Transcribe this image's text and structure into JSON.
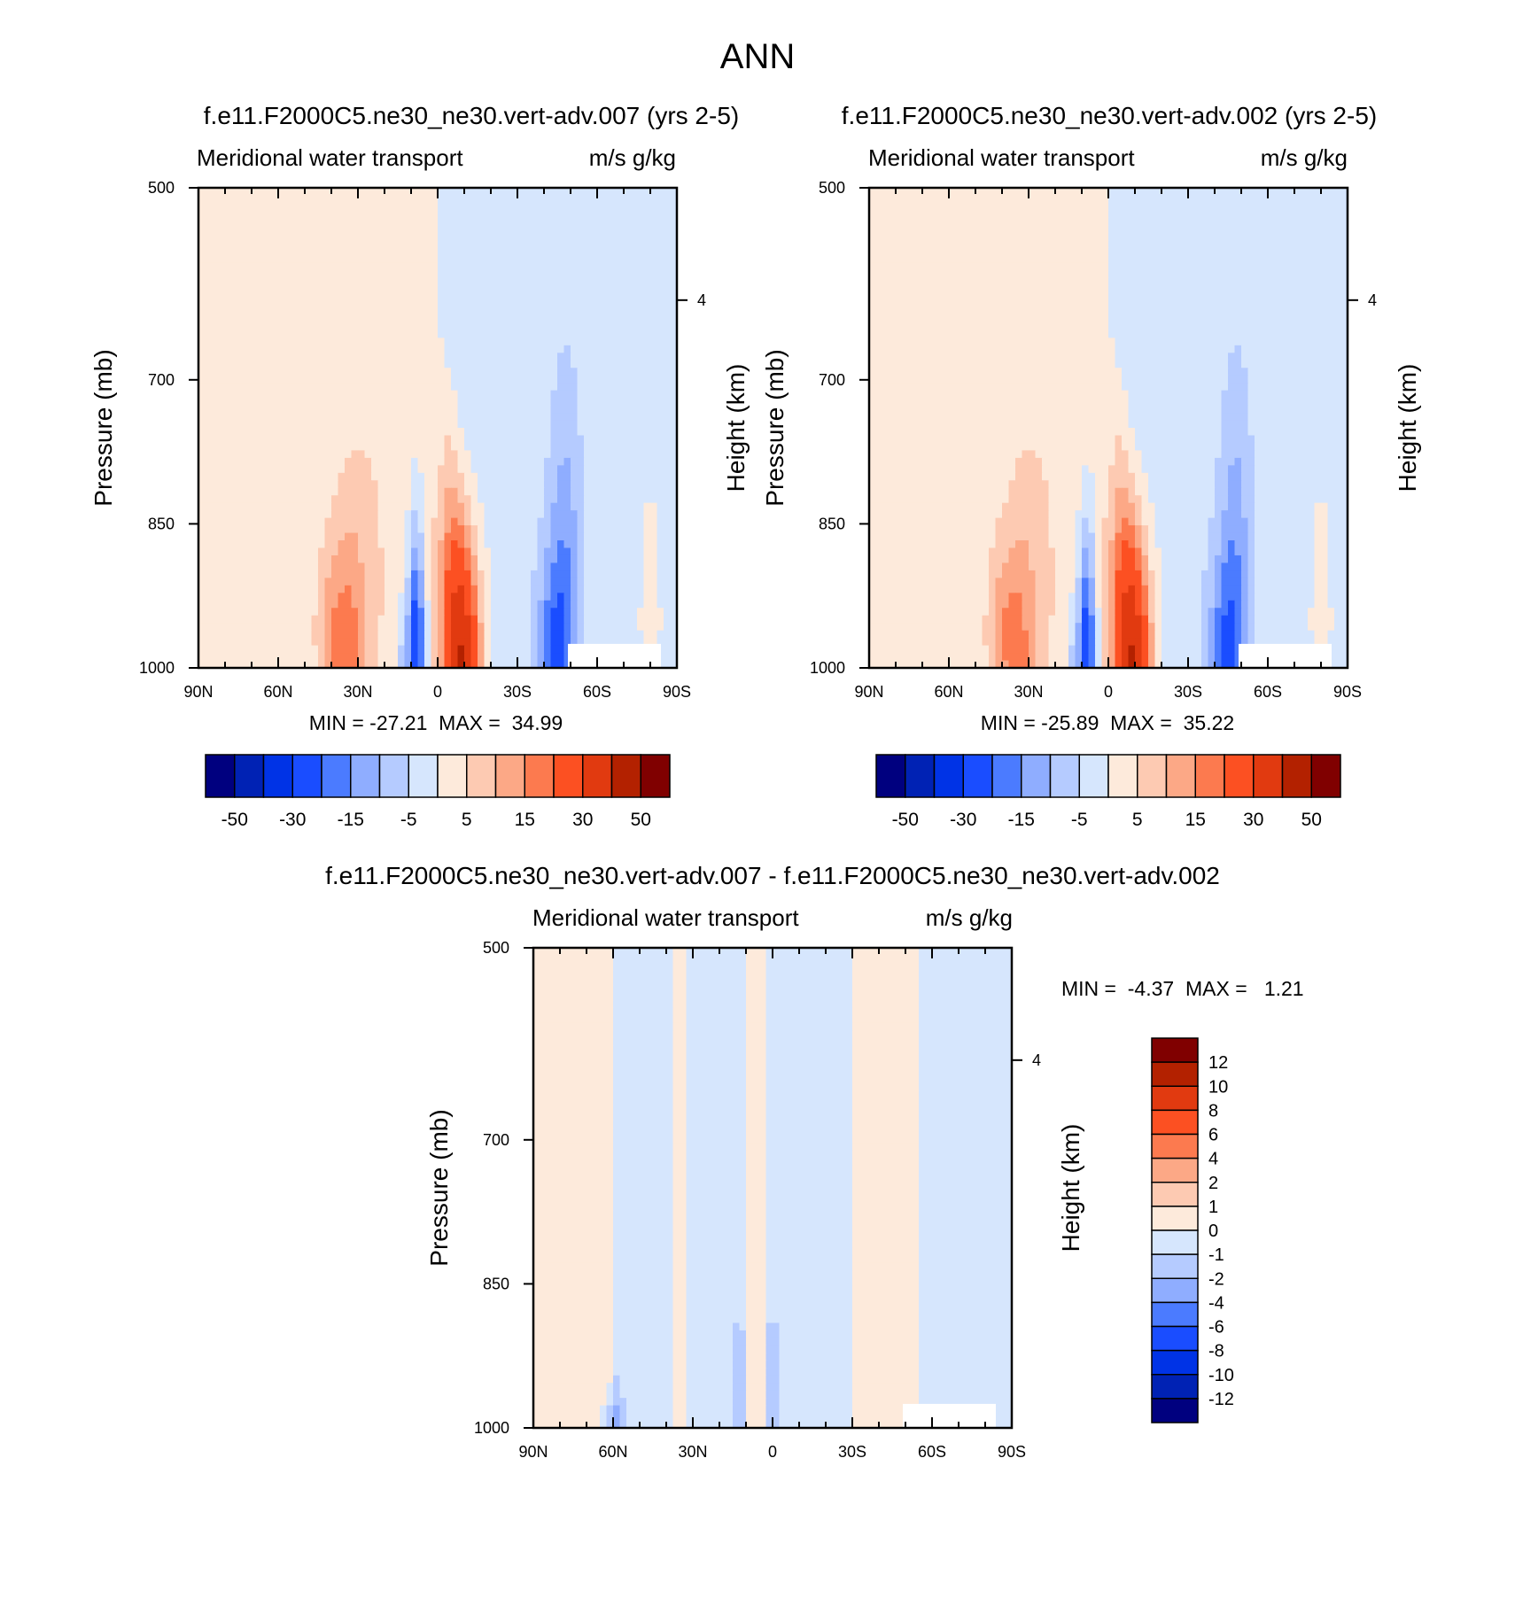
{
  "page_title": "ANN",
  "chart_data": [
    {
      "type": "contour",
      "title": "f.e11.F2000C5.ne30_ne30.vert-adv.007 (yrs 2-5)",
      "left_label": "Meridional water transport",
      "right_label": "m/s g/kg",
      "ylabel": "Pressure (mb)",
      "ylabel_right": "Height (km)",
      "x_ticks": [
        "90N",
        "60N",
        "30N",
        "0",
        "30S",
        "60S",
        "90S"
      ],
      "y_ticks": [
        "500",
        "700",
        "850",
        "1000"
      ],
      "y_right_ticks": [
        "4"
      ],
      "stats": {
        "min_label": "MIN =",
        "min": "-27.21",
        "max_label": "MAX =",
        "max": "34.99"
      },
      "levels": [
        -50,
        -40,
        -30,
        -20,
        -15,
        -10,
        -5,
        0,
        5,
        10,
        15,
        20,
        30,
        40,
        50
      ],
      "colorbar_labels": [
        "-50",
        "-30",
        "-15",
        "-5",
        "5",
        "15",
        "30",
        "50"
      ],
      "colors": [
        "#00007f",
        "#0022b4",
        "#0033e6",
        "#1a4dff",
        "#4b7bff",
        "#8fadff",
        "#b5cbff",
        "#d6e6fd",
        "#fdeadb",
        "#fdcab2",
        "#fca886",
        "#fc7a4f",
        "#fc5022",
        "#e13a10",
        "#b32100",
        "#800000"
      ],
      "features": [
        {
          "lat": 33,
          "p": 1000,
          "sx": 6.0,
          "sy": 160,
          "amp": 13
        },
        {
          "lat": 40,
          "p": 960,
          "sx": 5.5,
          "sy": 90,
          "amp": 9
        },
        {
          "lat": 25,
          "p": 900,
          "sx": 8.0,
          "sy": 180,
          "amp": 3
        },
        {
          "lat": 8,
          "p": 1000,
          "sx": 3.2,
          "sy": 140,
          "amp": -30
        },
        {
          "lat": 13,
          "p": 1000,
          "sx": 3.0,
          "sy": 70,
          "amp": -8
        },
        {
          "lat": -9,
          "p": 1000,
          "sx": 7.0,
          "sy": 130,
          "amp": 42
        },
        {
          "lat": -5,
          "p": 870,
          "sx": 5.0,
          "sy": 100,
          "amp": 10
        },
        {
          "lat": -4,
          "p": 760,
          "sx": 2.8,
          "sy": 80,
          "amp": 4
        },
        {
          "lat": -44,
          "p": 1000,
          "sx": 7.0,
          "sy": 120,
          "amp": -17
        },
        {
          "lat": -48,
          "p": 870,
          "sx": 6.0,
          "sy": 180,
          "amp": -9
        },
        {
          "lat": -80,
          "p": 950,
          "sx": 3.5,
          "sy": 120,
          "amp": 8
        }
      ]
    },
    {
      "type": "contour",
      "title": "f.e11.F2000C5.ne30_ne30.vert-adv.002 (yrs 2-5)",
      "left_label": "Meridional water transport",
      "right_label": "m/s g/kg",
      "ylabel": "Pressure (mb)",
      "ylabel_right": "Height (km)",
      "x_ticks": [
        "90N",
        "60N",
        "30N",
        "0",
        "30S",
        "60S",
        "90S"
      ],
      "y_ticks": [
        "500",
        "700",
        "850",
        "1000"
      ],
      "y_right_ticks": [
        "4"
      ],
      "stats": {
        "min_label": "MIN =",
        "min": "-25.89",
        "max_label": "MAX =",
        "max": "35.22"
      },
      "levels": [
        -50,
        -40,
        -30,
        -20,
        -15,
        -10,
        -5,
        0,
        5,
        10,
        15,
        20,
        30,
        40,
        50
      ],
      "colorbar_labels": [
        "-50",
        "-30",
        "-15",
        "-5",
        "5",
        "15",
        "30",
        "50"
      ],
      "colors": [
        "#00007f",
        "#0022b4",
        "#0033e6",
        "#1a4dff",
        "#4b7bff",
        "#8fadff",
        "#b5cbff",
        "#d6e6fd",
        "#fdeadb",
        "#fdcab2",
        "#fca886",
        "#fc7a4f",
        "#fc5022",
        "#e13a10",
        "#b32100",
        "#800000"
      ],
      "features": [
        {
          "lat": 33,
          "p": 1000,
          "sx": 6.0,
          "sy": 160,
          "amp": 12
        },
        {
          "lat": 40,
          "p": 960,
          "sx": 5.5,
          "sy": 90,
          "amp": 9
        },
        {
          "lat": 25,
          "p": 900,
          "sx": 8.0,
          "sy": 180,
          "amp": 3
        },
        {
          "lat": 8,
          "p": 1000,
          "sx": 3.2,
          "sy": 140,
          "amp": -28
        },
        {
          "lat": 13,
          "p": 1000,
          "sx": 3.0,
          "sy": 70,
          "amp": -8
        },
        {
          "lat": -9,
          "p": 1000,
          "sx": 7.0,
          "sy": 130,
          "amp": 42
        },
        {
          "lat": -5,
          "p": 870,
          "sx": 5.0,
          "sy": 100,
          "amp": 10
        },
        {
          "lat": -4,
          "p": 760,
          "sx": 2.8,
          "sy": 80,
          "amp": 4
        },
        {
          "lat": -44,
          "p": 1000,
          "sx": 7.0,
          "sy": 120,
          "amp": -16
        },
        {
          "lat": -48,
          "p": 870,
          "sx": 6.0,
          "sy": 180,
          "amp": -9
        },
        {
          "lat": -80,
          "p": 950,
          "sx": 3.5,
          "sy": 120,
          "amp": 8
        }
      ]
    },
    {
      "type": "contour",
      "title": "f.e11.F2000C5.ne30_ne30.vert-adv.007 - f.e11.F2000C5.ne30_ne30.vert-adv.002",
      "left_label": "Meridional water transport",
      "right_label": "m/s g/kg",
      "ylabel": "Pressure (mb)",
      "ylabel_right": "Height (km)",
      "x_ticks": [
        "90N",
        "60N",
        "30N",
        "0",
        "30S",
        "60S",
        "90S"
      ],
      "y_ticks": [
        "500",
        "700",
        "850",
        "1000"
      ],
      "y_right_ticks": [
        "4"
      ],
      "stats": {
        "min_label": "MIN =",
        "min": "-4.37",
        "max_label": "MAX =",
        "max": "1.21"
      },
      "levels": [
        -12,
        -10,
        -8,
        -6,
        -4,
        -2,
        -1,
        0,
        1,
        2,
        4,
        6,
        8,
        10,
        12
      ],
      "colorbar_labels": [
        "12",
        "10",
        "8",
        "6",
        "4",
        "2",
        "1",
        "0",
        "-1",
        "-2",
        "-4",
        "-6",
        "-8",
        "-10",
        "-12"
      ],
      "colors": [
        "#00007f",
        "#0022b4",
        "#0033e6",
        "#1a4dff",
        "#4b7bff",
        "#8fadff",
        "#b5cbff",
        "#d6e6fd",
        "#fdeadb",
        "#fdcab2",
        "#fca886",
        "#fc7a4f",
        "#fc5022",
        "#e13a10",
        "#b32100",
        "#800000"
      ],
      "features": [
        {
          "lat": 60,
          "p": 1000,
          "sx": 3.5,
          "sy": 40,
          "amp": -2.5
        },
        {
          "lat": 13,
          "p": 960,
          "sx": 2.8,
          "sy": 70,
          "amp": -1.6
        },
        {
          "lat": 0,
          "p": 960,
          "sx": 2.8,
          "sy": 70,
          "amp": -1.6
        }
      ]
    }
  ]
}
